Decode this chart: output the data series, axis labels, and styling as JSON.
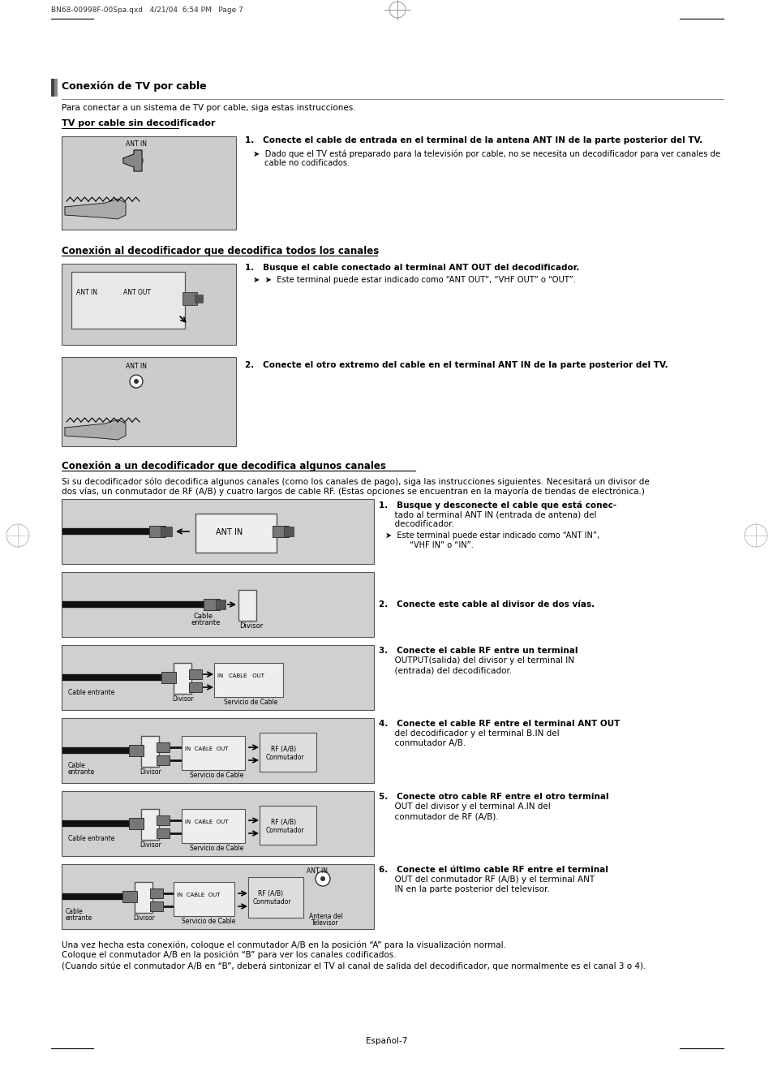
{
  "page_header": "BN68-00998F-00Spa.qxd   4/21/04  6:54 PM   Page 7",
  "section_title": "Conexión de TV por cable",
  "section_subtitle": "Para conectar a un sistema de TV por cable, siga estas instrucciones.",
  "subsection1": "TV por cable sin decodificador",
  "step1_text": "1.   Conecte el cable de entrada en el terminal de la antena ANT IN de la parte posterior del TV.",
  "step1_bullet1": "Dado que el TV está preparado para la televisión por cable, no se necesita un decodificador para ver canales de",
  "step1_bullet2": "cable no codificados.",
  "subsection2": "Conexión al decodificador que decodifica todos los canales",
  "step2_1_text": "1.   Busque el cable conectado al terminal ANT OUT del decodificador.",
  "step2_1_bullet": "➤  Este terminal puede estar indicado como “ANT OUT”, “VHF OUT” o “OUT”.",
  "step2_2_text": "2.   Conecte el otro extremo del cable en el terminal ANT IN de la parte posterior del TV.",
  "subsection3": "Conexión a un decodificador que decodifica algunos canales",
  "subsection3_body1": "Si su decodificador sólo decodifica algunos canales (como los canales de pago), siga las instrucciones siguientes. Necesitará un divisor de",
  "subsection3_body2": "dos vías, un conmutador de RF (A/B) y cuatro largos de cable RF. (Estas opciones se encuentran en la mayoría de tiendas de electrónica.)",
  "step3_1a": "1.   Busque y desconecte el cable que está conec-",
  "step3_1b": "      tado al terminal ANT IN (entrada de antena) del",
  "step3_1c": "      decodificador.",
  "step3_1d": "➤  Este terminal puede estar indicado como “ANT IN”,",
  "step3_1e": "       “VHF IN” o “IN”.",
  "step3_2": "2.   Conecte este cable al divisor de dos vías.",
  "step3_3a": "3.   Conecte el cable RF entre un terminal",
  "step3_3b": "      OUTPUT(salida) del divisor y el terminal IN",
  "step3_3c": "      (entrada) del decodificador.",
  "step3_4a": "4.   Conecte el cable RF entre el terminal ANT OUT",
  "step3_4b": "      del decodificador y el terminal B.IN del",
  "step3_4c": "      conmutador A/B.",
  "step3_5a": "5.   Conecte otro cable RF entre el otro terminal",
  "step3_5b": "      OUT del divisor y el terminal A.IN del",
  "step3_5c": "      conmutador de RF (A/B).",
  "step3_6a": "6.   Conecte el último cable RF entre el terminal",
  "step3_6b": "      OUT del conmutador RF (A/B) y el terminal ANT",
  "step3_6c": "      IN en la parte posterior del televisor.",
  "footer1": "Una vez hecha esta conexión, coloque el conmutador A/B en la posición “A” para la visualización normal.",
  "footer2": "Coloque el conmutador A/B en la posición “B” para ver los canales codificados.",
  "footer3": "(Cuando sitúe el conmutador A/B en “B”, deberá sintonizar el TV al canal de salida del decodificador, que normalmente es el canal 3 o 4).",
  "page_number": "Español-7",
  "bg_color": "#ffffff",
  "text_color": "#000000",
  "diagram_bg": "#cccccc",
  "border_color": "#555555"
}
